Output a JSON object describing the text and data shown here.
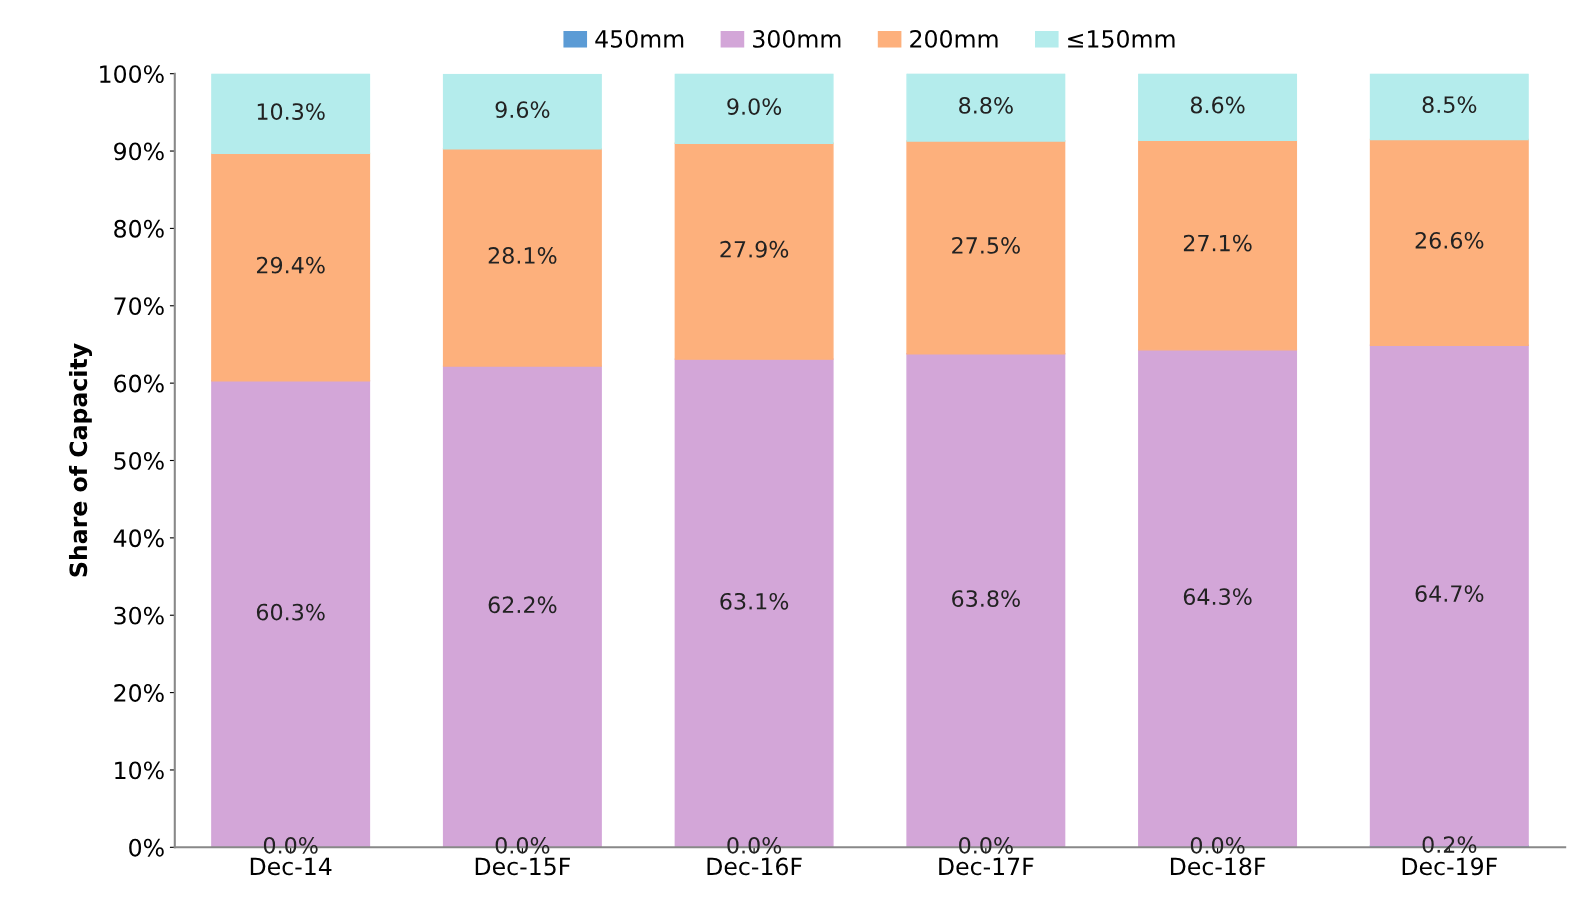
{
  "chart_data": {
    "type": "bar",
    "stacked": true,
    "ylabel": "Share of Capacity",
    "categories": [
      "Dec-14",
      "Dec-15F",
      "Dec-16F",
      "Dec-17F",
      "Dec-18F",
      "Dec-19F"
    ],
    "series": [
      {
        "name": "450mm",
        "color": "#5b9bd5",
        "values": [
          0.0,
          0.0,
          0.0,
          0.0,
          0.0,
          0.2
        ],
        "value_labels": [
          "0.0%",
          "0.0%",
          "0.0%",
          "0.0%",
          "0.0%",
          "0.2%"
        ]
      },
      {
        "name": "300mm",
        "color": "#d3a6d8",
        "values": [
          60.3,
          62.2,
          63.1,
          63.8,
          64.3,
          64.7
        ],
        "value_labels": [
          "60.3%",
          "62.2%",
          "63.1%",
          "63.8%",
          "64.3%",
          "64.7%"
        ]
      },
      {
        "name": "200mm",
        "color": "#fdb07c",
        "values": [
          29.4,
          28.1,
          27.9,
          27.5,
          27.1,
          26.6
        ],
        "value_labels": [
          "29.4%",
          "28.1%",
          "27.9%",
          "27.5%",
          "27.1%",
          "26.6%"
        ]
      },
      {
        "name": "≤150mm",
        "color": "#b4ecec",
        "values": [
          10.3,
          9.6,
          9.0,
          8.8,
          8.6,
          8.5
        ],
        "value_labels": [
          "10.3%",
          "9.6%",
          "9.0%",
          "8.8%",
          "8.6%",
          "8.5%"
        ]
      }
    ],
    "ylim": [
      0,
      100
    ],
    "yticks": [
      {
        "value": 0,
        "label": "0%"
      },
      {
        "value": 10,
        "label": "10%"
      },
      {
        "value": 20,
        "label": "20%"
      },
      {
        "value": 30,
        "label": "30%"
      },
      {
        "value": 40,
        "label": "40%"
      },
      {
        "value": 50,
        "label": "50%"
      },
      {
        "value": 60,
        "label": "60%"
      },
      {
        "value": 70,
        "label": "70%"
      },
      {
        "value": 80,
        "label": "80%"
      },
      {
        "value": 90,
        "label": "90%"
      },
      {
        "value": 100,
        "label": "100%"
      }
    ],
    "grid": false,
    "legend": "top"
  }
}
